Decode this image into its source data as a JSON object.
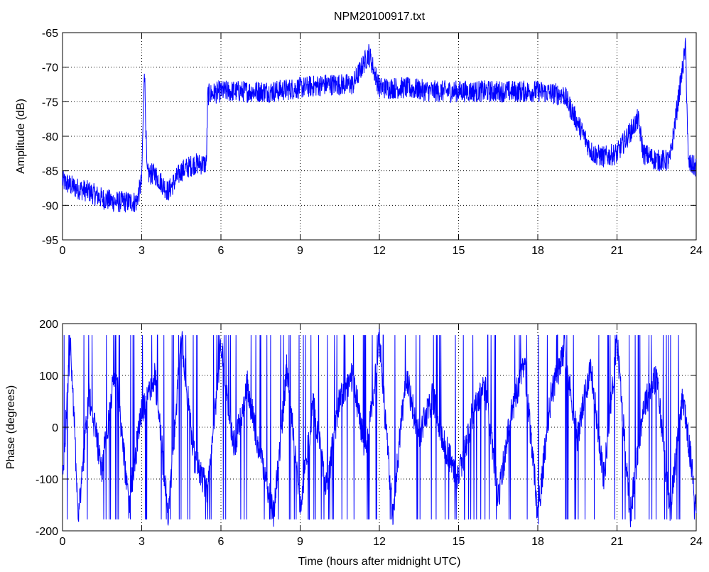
{
  "chart_data": [
    {
      "type": "line",
      "title": "NPM20100917.txt",
      "xlabel": "",
      "ylabel": "Amplitude (dB)",
      "xlim": [
        0,
        24
      ],
      "ylim": [
        -95,
        -65
      ],
      "xticks": [
        "0",
        "3",
        "6",
        "9",
        "12",
        "15",
        "18",
        "21",
        "24"
      ],
      "yticks": [
        "-65",
        "-70",
        "-75",
        "-80",
        "-85",
        "-90",
        "-95"
      ],
      "grid": true,
      "color": "#0000ff",
      "series": [
        {
          "x": [
            0,
            0.5,
            1,
            1.5,
            2,
            2.5,
            2.8,
            3.0,
            3.1,
            3.2,
            3.5,
            4.0,
            4.5,
            5.0,
            5.45,
            5.5,
            6,
            7,
            8,
            9,
            10,
            11,
            11.6,
            12,
            13,
            14,
            15,
            16,
            17,
            18,
            19,
            20.0,
            20.1,
            20.5,
            21,
            21.8,
            22,
            22.5,
            23,
            23.6,
            23.7,
            24
          ],
          "y": [
            -86.5,
            -87.5,
            -88.0,
            -89.0,
            -89.5,
            -89.5,
            -89.5,
            -86.5,
            -69.5,
            -85.5,
            -85.5,
            -88.0,
            -85.0,
            -84.0,
            -84.0,
            -74.0,
            -73.5,
            -73.5,
            -73.5,
            -73.0,
            -72.5,
            -72.5,
            -68.0,
            -73.0,
            -73.0,
            -73.5,
            -73.5,
            -73.5,
            -73.5,
            -73.5,
            -74.0,
            -82.0,
            -82.5,
            -83.0,
            -82.5,
            -77.5,
            -82.5,
            -83.5,
            -83.5,
            -67.0,
            -84.0,
            -84.5
          ]
        }
      ]
    },
    {
      "type": "line",
      "title": "",
      "xlabel": "Time (hours after midnight UTC)",
      "ylabel": "Phase (degrees)",
      "xlim": [
        0,
        24
      ],
      "ylim": [
        -200,
        200
      ],
      "xticks": [
        "0",
        "3",
        "6",
        "9",
        "12",
        "15",
        "18",
        "21",
        "24"
      ],
      "yticks": [
        "200",
        "100",
        "0",
        "-100",
        "-200"
      ],
      "grid": true,
      "color": "#0000ff",
      "series": [
        {
          "x": [
            0,
            0.3,
            0.6,
            1,
            1.5,
            2,
            2.5,
            3,
            3.5,
            4,
            4.5,
            5,
            5.5,
            6,
            6.5,
            7,
            7.5,
            8,
            8.5,
            9,
            9.5,
            10,
            10.5,
            11,
            11.5,
            12,
            12.5,
            13,
            13.5,
            14,
            14.5,
            15,
            15.5,
            16,
            16.5,
            17,
            17.5,
            18,
            18.5,
            19,
            19.5,
            20,
            20.5,
            21,
            21.5,
            22,
            22.5,
            23,
            23.5,
            24
          ],
          "y": [
            -100,
            170,
            -170,
            60,
            -80,
            120,
            -150,
            30,
            100,
            -170,
            170,
            -60,
            -120,
            160,
            -40,
            80,
            -60,
            -170,
            120,
            -150,
            40,
            -120,
            60,
            100,
            -60,
            170,
            -170,
            100,
            -20,
            60,
            -40,
            -100,
            20,
            80,
            -140,
            30,
            120,
            -170,
            60,
            150,
            -20,
            120,
            -100,
            170,
            -170,
            40,
            100,
            -160,
            60,
            -150
          ]
        }
      ]
    }
  ]
}
